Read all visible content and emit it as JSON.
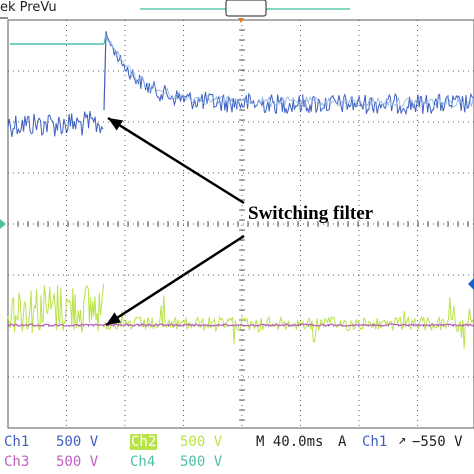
{
  "header": {
    "partial_label": "ek PreVu"
  },
  "annotation": {
    "label": "Switching filter"
  },
  "readouts": {
    "ch1": {
      "name": "Ch1",
      "value": "500 V"
    },
    "ch2": {
      "name": "Ch2",
      "value": "500 V"
    },
    "ch3": {
      "name": "Ch3",
      "value": "500 V"
    },
    "ch4": {
      "name": "Ch4",
      "value": "500 V"
    },
    "timebase": "M 40.0ms",
    "trigger_mode": "A",
    "trigger_source": "Ch1",
    "trigger_slope_icon": "rising-edge-icon",
    "trigger_level": "−550 V"
  },
  "colors": {
    "ch1": "#3d5fc0",
    "ch2": "#b9e34a",
    "ch3": "#c060c0",
    "ch4": "#4ec0a8",
    "grid": "#5a5a5a",
    "orange_marker": "#e07820",
    "blue_marker": "#1a5fd0"
  }
}
